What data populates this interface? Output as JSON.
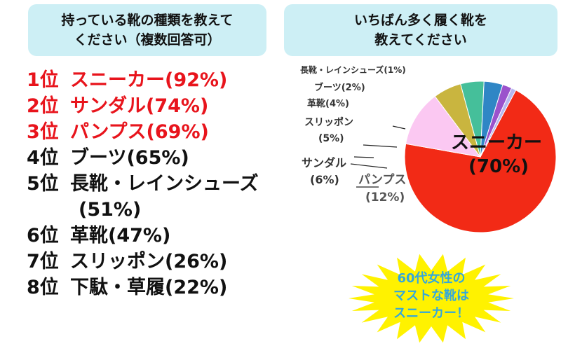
{
  "left_panel": {
    "title_line1": "持っている靴の種類を教えて",
    "title_line2": "ください（複数回答可）",
    "ranking": [
      {
        "rank": "1位",
        "label": "スニーカー(92%)",
        "value": 92
      },
      {
        "rank": "2位",
        "label": "サンダル(74%)",
        "value": 74
      },
      {
        "rank": "3位",
        "label": "パンプス(69%)",
        "value": 69
      },
      {
        "rank": "4位",
        "label": "ブーツ(65%)",
        "value": 65
      },
      {
        "rank": "5位",
        "label": "長靴・レインシューズ",
        "label_cont": "(51%)",
        "value": 51
      },
      {
        "rank": "6位",
        "label": "革靴(47%)",
        "value": 47
      },
      {
        "rank": "7位",
        "label": "スリッポン(26%)",
        "value": 26
      },
      {
        "rank": "8位",
        "label": "下駄・草履(22%)",
        "value": 22
      }
    ],
    "top_color": "#e8141c"
  },
  "right_panel": {
    "title_line1": "いちばん多く履く靴を",
    "title_line2": "教えてください"
  },
  "chart_data": {
    "type": "pie",
    "slices": [
      {
        "name": "スニーカー",
        "value": 70,
        "color": "#f22a16"
      },
      {
        "name": "パンプス",
        "value": 12,
        "color": "#fbc8f2"
      },
      {
        "name": "サンダル",
        "value": 6,
        "color": "#c9b53f"
      },
      {
        "name": "スリッポン",
        "value": 5,
        "color": "#45bf9a"
      },
      {
        "name": "革靴",
        "value": 4,
        "color": "#2f86c5"
      },
      {
        "name": "ブーツ",
        "value": 2,
        "color": "#9b52cc"
      },
      {
        "name": "長靴・レインシューズ",
        "value": 1,
        "color": "#b7b7f0"
      }
    ],
    "labels": {
      "sneaker_line1": "スニーカー",
      "sneaker_line2": "(70%)",
      "pumps_line1": "パンプス",
      "pumps_line2": "(12%)",
      "sandal_line1": "サンダル",
      "sandal_line2": "(6%)",
      "slipon_line1": "スリッポン",
      "slipon_line2": "(5%)",
      "leather": "革靴(4%)",
      "boots": "ブーツ(2%)",
      "rain": "長靴・レインシューズ(1%)"
    }
  },
  "callout": {
    "line1": "60代女性の",
    "line2": "マストな靴は",
    "line3": "スニーカー！",
    "color": "#fff200",
    "text_color": "#33a7dc"
  }
}
